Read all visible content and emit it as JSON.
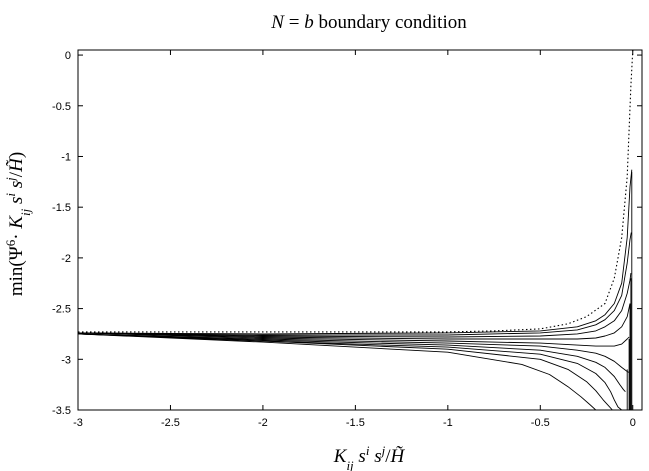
{
  "chart_data": {
    "type": "line",
    "title": "N = b boundary condition",
    "xlabel": "K_ij s^i s^j / H̃",
    "ylabel": "min(Ψ^6 · K_ij s^i s^j / H̃)",
    "xlim": [
      -3,
      0.05
    ],
    "ylim": [
      -3.5,
      0.05
    ],
    "xticks": [
      -3,
      -2.5,
      -2,
      -1.5,
      -1,
      -0.5,
      0
    ],
    "yticks": [
      0,
      -0.5,
      -1,
      -1.5,
      -2,
      -2.5,
      -3,
      -3.5
    ],
    "xtick_labels": [
      "-3",
      "-2.5",
      "-2",
      "-1.5",
      "-1",
      "-0.5",
      "0"
    ],
    "ytick_labels": [
      "0",
      "-0.5",
      "-1",
      "-1.5",
      "-2",
      "-2.5",
      "-3",
      "-3.5"
    ],
    "grid": false,
    "legend": "none",
    "series": [
      {
        "style": "dotted",
        "x": [
          -3,
          -2.5,
          -2,
          -1.5,
          -1,
          -0.75,
          -0.5,
          -0.35,
          -0.25,
          -0.15,
          -0.1,
          -0.06,
          -0.03,
          -0.01,
          0.0
        ],
        "y": [
          -2.73,
          -2.73,
          -2.73,
          -2.73,
          -2.73,
          -2.72,
          -2.7,
          -2.65,
          -2.58,
          -2.45,
          -2.2,
          -1.8,
          -1.2,
          -0.3,
          0.05
        ]
      },
      {
        "style": "solid",
        "x": [
          -3,
          -2,
          -1,
          -0.5,
          -0.3,
          -0.2,
          -0.15,
          -0.1,
          -0.06,
          -0.03,
          -0.015,
          -0.005
        ],
        "y": [
          -2.74,
          -2.75,
          -2.74,
          -2.72,
          -2.68,
          -2.62,
          -2.56,
          -2.45,
          -2.25,
          -1.8,
          -1.3,
          -1.13
        ]
      },
      {
        "style": "solid",
        "x": [
          -3,
          -2,
          -1,
          -0.5,
          -0.3,
          -0.2,
          -0.15,
          -0.1,
          -0.06,
          -0.03,
          -0.015,
          -0.008
        ],
        "y": [
          -2.74,
          -2.76,
          -2.76,
          -2.74,
          -2.71,
          -2.66,
          -2.61,
          -2.52,
          -2.37,
          -2.05,
          -1.82,
          -1.75
        ]
      },
      {
        "style": "solid",
        "x": [
          -3,
          -2,
          -1,
          -0.5,
          -0.3,
          -0.2,
          -0.15,
          -0.1,
          -0.06,
          -0.03,
          -0.015,
          -0.01
        ],
        "y": [
          -2.74,
          -2.77,
          -2.78,
          -2.77,
          -2.75,
          -2.72,
          -2.68,
          -2.62,
          -2.52,
          -2.35,
          -2.22,
          -2.15
        ]
      },
      {
        "style": "solid",
        "x": [
          -3,
          -2,
          -1,
          -0.5,
          -0.3,
          -0.2,
          -0.15,
          -0.1,
          -0.06,
          -0.03,
          -0.015
        ],
        "y": [
          -2.74,
          -2.78,
          -2.8,
          -2.8,
          -2.8,
          -2.79,
          -2.77,
          -2.74,
          -2.68,
          -2.58,
          -2.45
        ]
      },
      {
        "style": "solid",
        "x": [
          -3,
          -2,
          -1,
          -0.5,
          -0.3,
          -0.2,
          -0.15,
          -0.1,
          -0.06,
          -0.03,
          -0.02
        ],
        "y": [
          -2.74,
          -2.79,
          -2.82,
          -2.84,
          -2.86,
          -2.87,
          -2.87,
          -2.87,
          -2.85,
          -2.8,
          -2.78
        ]
      },
      {
        "style": "solid",
        "x": [
          -3,
          -2,
          -1,
          -0.5,
          -0.3,
          -0.2,
          -0.15,
          -0.1,
          -0.06,
          -0.03,
          -0.02
        ],
        "y": [
          -2.75,
          -2.8,
          -2.84,
          -2.87,
          -2.91,
          -2.94,
          -2.97,
          -3.02,
          -3.08,
          -3.12,
          -3.13
        ]
      },
      {
        "style": "solid",
        "x": [
          -3,
          -2,
          -1,
          -0.5,
          -0.3,
          -0.2,
          -0.15,
          -0.1,
          -0.07,
          -0.05,
          -0.04
        ],
        "y": [
          -2.75,
          -2.81,
          -2.86,
          -2.91,
          -2.97,
          -3.03,
          -3.08,
          -3.17,
          -3.25,
          -3.3,
          -3.32
        ]
      },
      {
        "style": "solid",
        "x": [
          -3,
          -2,
          -1,
          -0.5,
          -0.3,
          -0.2,
          -0.15,
          -0.12,
          -0.1,
          -0.08,
          -0.06
        ],
        "y": [
          -2.75,
          -2.82,
          -2.88,
          -2.95,
          -3.04,
          -3.14,
          -3.23,
          -3.32,
          -3.4,
          -3.47,
          -3.5
        ]
      },
      {
        "style": "solid",
        "x": [
          -3,
          -2,
          -1,
          -0.5,
          -0.35,
          -0.25,
          -0.2,
          -0.16,
          -0.13,
          -0.11
        ],
        "y": [
          -2.75,
          -2.82,
          -2.9,
          -3.0,
          -3.1,
          -3.22,
          -3.31,
          -3.4,
          -3.46,
          -3.5
        ]
      },
      {
        "style": "solid",
        "x": [
          -3,
          -2,
          -1,
          -0.6,
          -0.45,
          -0.35,
          -0.28,
          -0.23,
          -0.2
        ],
        "y": [
          -2.75,
          -2.83,
          -2.93,
          -3.05,
          -3.15,
          -3.27,
          -3.37,
          -3.45,
          -3.5
        ]
      },
      {
        "style": "solid",
        "x": [
          -0.02,
          -0.02
        ],
        "y": [
          -2.8,
          -3.5
        ]
      },
      {
        "style": "solid",
        "x": [
          -0.01,
          -0.01
        ],
        "y": [
          -2.2,
          -3.5
        ]
      },
      {
        "style": "solid",
        "x": [
          -0.005,
          -0.005
        ],
        "y": [
          -1.15,
          -3.5
        ]
      },
      {
        "style": "solid",
        "x": [
          -0.015,
          -0.015
        ],
        "y": [
          -2.45,
          -3.5
        ]
      },
      {
        "style": "solid",
        "x": [
          -0.03,
          -0.03
        ],
        "y": [
          -3.1,
          -3.5
        ]
      }
    ]
  }
}
